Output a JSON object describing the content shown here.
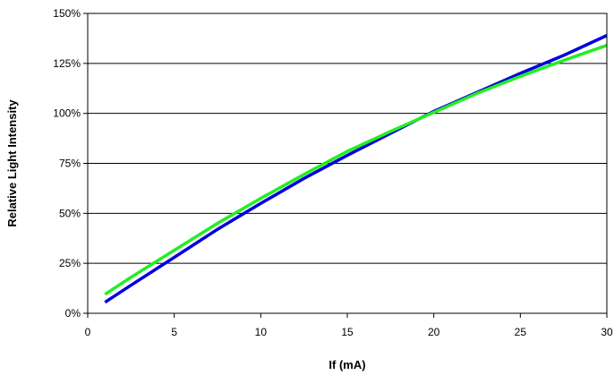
{
  "chart_data": {
    "type": "line",
    "title": "",
    "xlabel": "If (mA)",
    "ylabel": "Relative Light Intensity",
    "xlim": [
      0,
      30
    ],
    "ylim": [
      0,
      150
    ],
    "x_ticks": [
      0,
      5,
      10,
      15,
      20,
      25,
      30
    ],
    "y_ticks": [
      0,
      25,
      50,
      75,
      100,
      125,
      150
    ],
    "x_tick_labels": [
      "0",
      "5",
      "10",
      "15",
      "20",
      "25",
      "30"
    ],
    "y_tick_labels": [
      "0%",
      "25%",
      "50%",
      "75%",
      "100%",
      "125%",
      "150%"
    ],
    "grid": "horizontal",
    "legend": "none",
    "series": [
      {
        "color": "#0000dd",
        "x": [
          1,
          2.5,
          5,
          7.5,
          10,
          12.5,
          15,
          17.5,
          20,
          22.5,
          25,
          27.5,
          30
        ],
        "values": [
          5.5,
          14,
          28,
          42,
          55,
          67.5,
          79,
          90,
          101,
          110.5,
          120,
          129,
          139
        ]
      },
      {
        "color": "#22ee22",
        "x": [
          1,
          2.5,
          5,
          7.5,
          10,
          12.5,
          15,
          17.5,
          20,
          22.5,
          25,
          27.5,
          30
        ],
        "values": [
          9.5,
          18,
          31.5,
          45,
          57.5,
          69.5,
          81,
          91,
          100.5,
          110,
          118.5,
          126.5,
          134
        ]
      }
    ]
  }
}
